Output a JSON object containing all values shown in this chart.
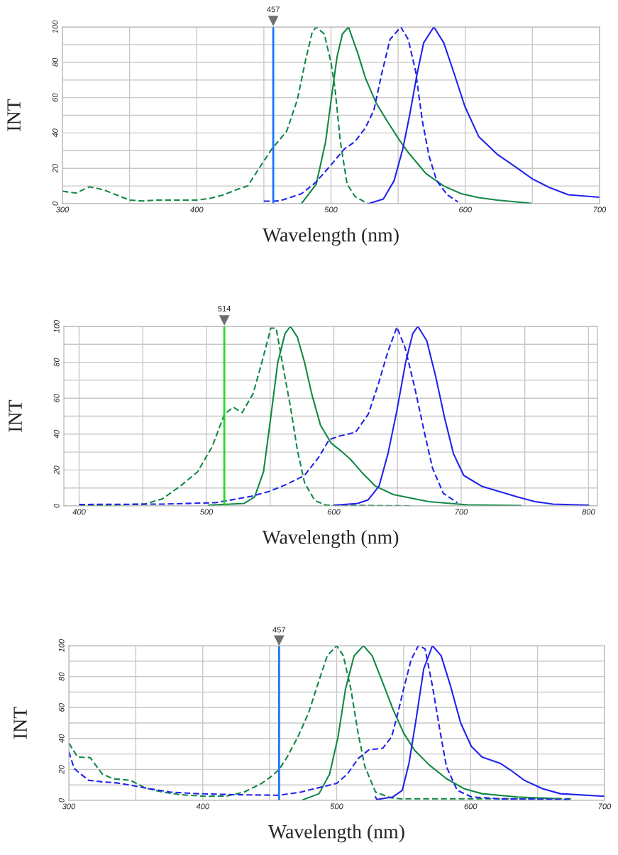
{
  "chart_data": [
    {
      "type": "line",
      "xlabel": "Wavelength (nm)",
      "ylabel": "INT",
      "xlim": [
        300,
        700
      ],
      "ylim": [
        0,
        100
      ],
      "xticks": [
        300,
        {
          "value": 350,
          "label": null
        },
        400,
        {
          "value": 450,
          "label": null
        },
        500,
        {
          "value": 550,
          "label": null
        },
        600,
        {
          "value": 650,
          "label": null
        },
        700
      ],
      "yticks": [
        0,
        {
          "value": 10,
          "label": null
        },
        20,
        {
          "value": 30,
          "label": null
        },
        40,
        {
          "value": 50,
          "label": null
        },
        60,
        {
          "value": 70,
          "label": null
        },
        80,
        {
          "value": 90,
          "label": null
        },
        100
      ],
      "grid": true,
      "ref_lines": [
        {
          "axis": "x",
          "value": 457,
          "label": "457",
          "color": "#1a75ff"
        }
      ],
      "series": [
        {
          "color": "#118844",
          "line_style": "dashed",
          "x": [
            300,
            310,
            320,
            330,
            340,
            350,
            360,
            370,
            380,
            390,
            400,
            410,
            420,
            430,
            438,
            449,
            456,
            467,
            475,
            481,
            486,
            489,
            495,
            500,
            503,
            507,
            512,
            518,
            525,
            528
          ],
          "values": [
            7,
            6,
            9.5,
            8,
            5,
            2,
            1.5,
            2,
            2,
            2,
            2,
            3,
            5,
            8,
            10,
            23,
            31,
            41,
            59,
            81,
            97,
            100,
            96,
            80,
            65,
            35,
            11,
            4,
            1,
            0
          ]
        },
        {
          "color": "#118844",
          "line_style": "solid",
          "x": [
            478,
            489,
            496,
            500.5,
            504.5,
            508.5,
            513,
            520,
            525.7,
            533.6,
            541.6,
            550.9,
            557.5,
            570.7,
            584,
            597,
            610,
            623.7,
            649
          ],
          "values": [
            0,
            11,
            35,
            61,
            83,
            96,
            100,
            85,
            71,
            57,
            47,
            36,
            29,
            17,
            10,
            5.6,
            3.4,
            2,
            0.2
          ]
        },
        {
          "color": "#2222ee",
          "line_style": "dashed",
          "x": [
            450,
            457,
            462,
            478,
            488.6,
            499,
            510,
            517.7,
            525.7,
            532,
            537.6,
            544,
            552,
            557.5,
            563,
            568,
            573,
            578.7,
            586.6,
            594.6
          ],
          "values": [
            1.4,
            1.4,
            1.6,
            5.6,
            12,
            21,
            31,
            35,
            43,
            53,
            73,
            93,
            100,
            93,
            75,
            47,
            27,
            13,
            5,
            1
          ]
        },
        {
          "color": "#2222ee",
          "line_style": "solid",
          "x": [
            528,
            539,
            547,
            553.5,
            558.8,
            564,
            569,
            576.6,
            584,
            592,
            599.7,
            610,
            623.7,
            637,
            650,
            663,
            676.7,
            700
          ],
          "values": [
            0,
            2.6,
            13,
            31,
            51,
            73,
            91,
            100,
            91,
            73,
            55,
            38,
            28,
            21,
            14,
            9,
            5,
            3.6
          ]
        }
      ]
    },
    {
      "type": "line",
      "xlabel": "Wavelength (nm)",
      "ylabel": "INT",
      "xlim": [
        388,
        807
      ],
      "ylim": [
        0,
        100
      ],
      "xticks": [
        400,
        {
          "value": 450,
          "label": null
        },
        500,
        {
          "value": 550,
          "label": null
        },
        600,
        {
          "value": 650,
          "label": null
        },
        700,
        {
          "value": 750,
          "label": null
        },
        800
      ],
      "yticks": [
        0,
        {
          "value": 10,
          "label": null
        },
        20,
        {
          "value": 30,
          "label": null
        },
        40,
        {
          "value": 50,
          "label": null
        },
        60,
        {
          "value": 70,
          "label": null
        },
        80,
        {
          "value": 90,
          "label": null
        },
        100
      ],
      "grid": true,
      "ref_lines": [
        {
          "axis": "x",
          "value": 514,
          "label": "514",
          "color": "#22dd22"
        }
      ],
      "series": [
        {
          "color": "#118844",
          "line_style": "dashed",
          "x": [
            400,
            451.6,
            465.5,
            479.4,
            493,
            504.5,
            514,
            521,
            528,
            536.6,
            543.5,
            550.5,
            554.7,
            560,
            566,
            571.4,
            577,
            585,
            593.7,
            660
          ],
          "values": [
            0,
            1,
            4,
            11,
            19,
            33,
            51,
            55,
            52,
            62.5,
            80,
            99,
            99,
            78,
            55,
            31,
            13,
            3,
            0.4,
            0
          ]
        },
        {
          "color": "#118844",
          "line_style": "solid",
          "x": [
            501.7,
            529.6,
            537.8,
            544.8,
            550.4,
            556,
            561.7,
            565.9,
            571.4,
            577,
            582.6,
            589.5,
            597.9,
            605,
            613,
            621.6,
            632.7,
            646.7,
            674.6,
            705,
            747
          ],
          "values": [
            0.4,
            1.4,
            5,
            19,
            49,
            80,
            96,
            100,
            94,
            80,
            62.5,
            45,
            35,
            31,
            26,
            19,
            11,
            6.3,
            2.4,
            0.6,
            0.2
          ]
        },
        {
          "color": "#2222ee",
          "line_style": "dashed",
          "x": [
            400,
            465.5,
            507,
            535,
            549,
            563,
            577,
            588,
            596.5,
            605,
            617,
            627,
            635,
            642.5,
            649.5,
            656,
            663.5,
            670.5,
            677.5,
            686,
            697
          ],
          "values": [
            0.8,
            1,
            1.8,
            5.3,
            8,
            12,
            17,
            27,
            37,
            39,
            41,
            51,
            68,
            86,
            99.6,
            88,
            66,
            43,
            21,
            7,
            1.8
          ]
        },
        {
          "color": "#2222ee",
          "line_style": "solid",
          "x": [
            600.7,
            618.8,
            627,
            635.5,
            642.5,
            649.5,
            656.4,
            662,
            666,
            673,
            680,
            687,
            694,
            702,
            716,
            730,
            744,
            758,
            772,
            800
          ],
          "values": [
            0.4,
            1.4,
            3.4,
            11,
            29,
            53,
            80,
            96,
            100,
            92,
            72,
            49,
            29,
            17,
            11,
            8,
            5,
            2.4,
            1,
            0.4
          ]
        }
      ]
    },
    {
      "type": "line",
      "xlabel": "Wavelength (nm)",
      "ylabel": "INT",
      "xlim": [
        300,
        700
      ],
      "ylim": [
        0,
        100
      ],
      "xticks": [
        300,
        {
          "value": 350,
          "label": null
        },
        400,
        {
          "value": 450,
          "label": null
        },
        500,
        {
          "value": 550,
          "label": null
        },
        600,
        {
          "value": 650,
          "label": null
        },
        700
      ],
      "yticks": [
        0,
        {
          "value": 10,
          "label": null
        },
        20,
        {
          "value": 30,
          "label": null
        },
        40,
        {
          "value": 50,
          "label": null
        },
        60,
        {
          "value": 70,
          "label": null
        },
        80,
        {
          "value": 90,
          "label": null
        },
        100
      ],
      "grid": true,
      "ref_lines": [
        {
          "axis": "x",
          "value": 457,
          "label": "457",
          "color": "#1a75ff"
        }
      ],
      "series": [
        {
          "color": "#118844",
          "line_style": "dashed",
          "x": [
            300,
            306.6,
            316,
            325,
            333,
            346,
            357,
            370,
            383,
            402,
            418,
            431,
            444,
            452,
            457,
            463,
            471,
            479,
            487,
            493,
            500,
            505,
            510.6,
            516,
            521,
            529,
            540,
            547.7,
            675
          ],
          "values": [
            37,
            28,
            27.6,
            17,
            14,
            13,
            8,
            5.4,
            3.7,
            2.6,
            2.8,
            5.4,
            11,
            16,
            20,
            28,
            41,
            56.5,
            78,
            93.5,
            100,
            93.5,
            72,
            43.5,
            22,
            5.4,
            1.7,
            1,
            1
          ]
        },
        {
          "color": "#118844",
          "line_style": "solid",
          "x": [
            474.8,
            486.8,
            494.7,
            501,
            506.6,
            513,
            520,
            526.5,
            534,
            542,
            550,
            558,
            569,
            582,
            595,
            608.6,
            635,
            667
          ],
          "values": [
            0.4,
            4.3,
            17,
            41,
            72,
            93.5,
            100,
            93.5,
            77,
            59,
            43.5,
            32.6,
            23,
            14,
            7.6,
            4.3,
            2.2,
            1
          ]
        },
        {
          "color": "#2222ee",
          "line_style": "dashed",
          "x": [
            300,
            304,
            314.6,
            325,
            335.8,
            346,
            359.6,
            375.5,
            396.7,
            423,
            457,
            473.5,
            489,
            500,
            508,
            516,
            524,
            534.4,
            541,
            545,
            550,
            555.6,
            561,
            566,
            571.5,
            577,
            582,
            590,
            600.7,
            622,
            675
          ],
          "values": [
            31.5,
            20.6,
            13,
            12,
            11.3,
            9.8,
            7.6,
            5.4,
            4.3,
            3.7,
            3.3,
            5.4,
            8.7,
            11,
            17,
            27,
            32.6,
            33.7,
            41,
            54,
            72,
            91,
            100,
            98,
            74,
            45.6,
            21.7,
            6.5,
            2.2,
            1,
            0.6
          ]
        },
        {
          "color": "#2222ee",
          "line_style": "solid",
          "x": [
            529,
            530,
            542,
            549,
            554,
            559.6,
            565,
            571.5,
            578,
            585,
            592.6,
            600.5,
            608.6,
            622,
            629.8,
            640,
            653.6,
            667,
            700
          ],
          "values": [
            2.2,
            0.6,
            2.2,
            6.5,
            24,
            54,
            85,
            100,
            93.5,
            74,
            50,
            35,
            28,
            24,
            19.6,
            13,
            7.6,
            4.3,
            2.6
          ]
        }
      ]
    }
  ]
}
